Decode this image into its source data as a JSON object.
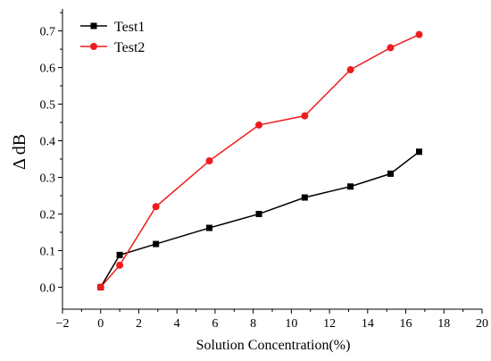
{
  "chart_data": {
    "type": "line",
    "title": "",
    "xlabel": "Solution Concentration(%)",
    "ylabel": "Δ dB",
    "xlim": [
      -2,
      20
    ],
    "ylim": [
      -0.06,
      0.76
    ],
    "x_ticks": [
      -2,
      0,
      2,
      4,
      6,
      8,
      10,
      12,
      14,
      16,
      18,
      20
    ],
    "y_ticks": [
      0.0,
      0.1,
      0.2,
      0.3,
      0.4,
      0.5,
      0.6,
      0.7
    ],
    "x_tick_labels": [
      "−2",
      "0",
      "2",
      "4",
      "6",
      "8",
      "10",
      "12",
      "14",
      "16",
      "18",
      "20"
    ],
    "y_tick_labels": [
      "0.0",
      "0.1",
      "0.2",
      "0.3",
      "0.4",
      "0.5",
      "0.6",
      "0.7"
    ],
    "grid": false,
    "legend_position": "top-left",
    "series": [
      {
        "name": "Test1",
        "color": "#000000",
        "marker": "square",
        "x": [
          0,
          1,
          2.9,
          5.7,
          8.3,
          10.7,
          13.1,
          15.2,
          16.7
        ],
        "y": [
          0.0,
          0.088,
          0.118,
          0.162,
          0.2,
          0.245,
          0.275,
          0.31,
          0.37
        ]
      },
      {
        "name": "Test2",
        "color": "#ee1c1c",
        "marker": "circle",
        "x": [
          0,
          1,
          2.9,
          5.7,
          8.3,
          10.7,
          13.1,
          15.2,
          16.7
        ],
        "y": [
          0.0,
          0.06,
          0.22,
          0.345,
          0.443,
          0.468,
          0.594,
          0.654,
          0.69
        ]
      }
    ]
  }
}
